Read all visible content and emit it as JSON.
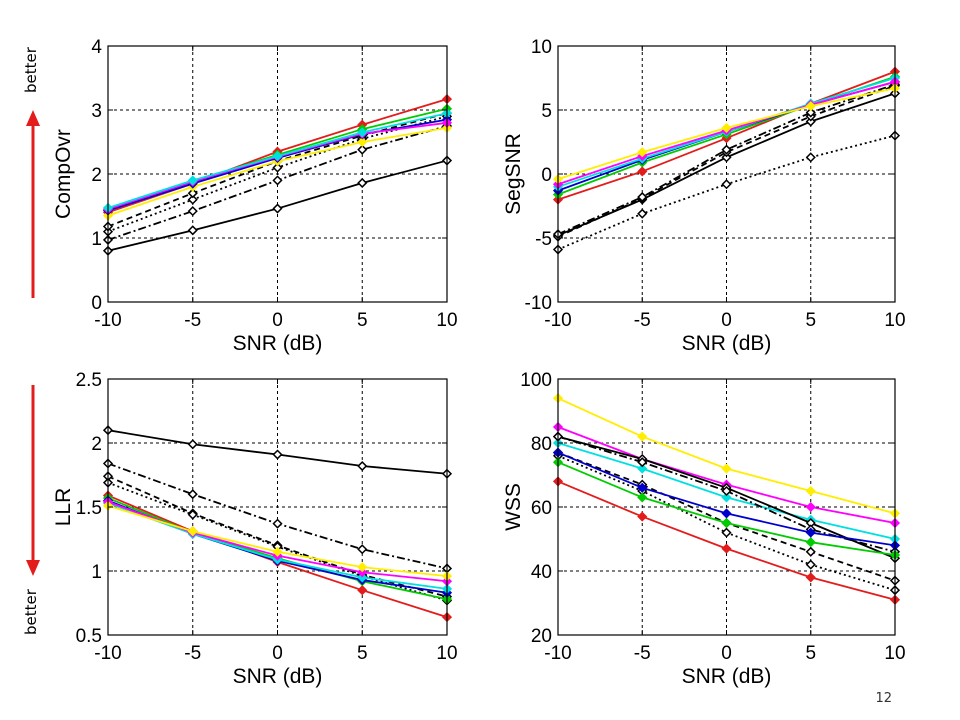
{
  "page": {
    "page_number": "12"
  },
  "annotations": {
    "top_label": "better",
    "bottom_label": "better",
    "arrow_color": "#e31c1c"
  },
  "chart_data": [
    {
      "type": "line",
      "xlabel": "SNR (dB)",
      "ylabel": "CompOvr",
      "x": [
        -10,
        -5,
        0,
        5,
        10
      ],
      "xlim": [
        -10,
        10
      ],
      "ylim": [
        0,
        4
      ],
      "xticks": [
        "-10",
        "-5",
        "0",
        "5",
        "10"
      ],
      "yticks": [
        "0",
        "1",
        "2",
        "3",
        "4"
      ],
      "grid": true,
      "series": [
        {
          "color": "#000000",
          "dash": "solid",
          "values": [
            0.8,
            1.12,
            1.46,
            1.86,
            2.21
          ]
        },
        {
          "color": "#000000",
          "dash": "dashdot",
          "values": [
            0.97,
            1.42,
            1.9,
            2.38,
            2.75
          ]
        },
        {
          "color": "#000000",
          "dash": "dotted",
          "values": [
            1.1,
            1.6,
            2.1,
            2.55,
            2.9
          ]
        },
        {
          "color": "#000000",
          "dash": "dashed",
          "values": [
            1.18,
            1.7,
            2.2,
            2.6,
            2.95
          ]
        },
        {
          "color": "#e31c1c",
          "dash": "solid",
          "values": [
            1.4,
            1.85,
            2.35,
            2.77,
            3.17
          ]
        },
        {
          "color": "#ffee00",
          "dash": "solid",
          "values": [
            1.35,
            1.8,
            2.2,
            2.5,
            2.72
          ]
        },
        {
          "color": "#00cc00",
          "dash": "solid",
          "values": [
            1.45,
            1.88,
            2.3,
            2.7,
            3.02
          ]
        },
        {
          "color": "#0000cc",
          "dash": "solid",
          "values": [
            1.43,
            1.85,
            2.25,
            2.62,
            2.85
          ]
        },
        {
          "color": "#ff00ff",
          "dash": "solid",
          "values": [
            1.45,
            1.88,
            2.27,
            2.63,
            2.8
          ]
        },
        {
          "color": "#00e0e0",
          "dash": "solid",
          "values": [
            1.47,
            1.9,
            2.28,
            2.65,
            2.95
          ]
        }
      ]
    },
    {
      "type": "line",
      "xlabel": "SNR (dB)",
      "ylabel": "SegSNR",
      "x": [
        -10,
        -5,
        0,
        5,
        10
      ],
      "xlim": [
        -10,
        10
      ],
      "ylim": [
        -10,
        10
      ],
      "xticks": [
        "-10",
        "-5",
        "0",
        "5",
        "10"
      ],
      "yticks": [
        "-10",
        "-5",
        "0",
        "5",
        "10"
      ],
      "grid": true,
      "series": [
        {
          "color": "#000000",
          "dash": "dotted",
          "values": [
            -5.9,
            -3.1,
            -0.8,
            1.3,
            3.0
          ]
        },
        {
          "color": "#000000",
          "dash": "solid",
          "values": [
            -4.8,
            -2.0,
            1.3,
            4.1,
            6.3
          ]
        },
        {
          "color": "#000000",
          "dash": "dashed",
          "values": [
            -4.9,
            -1.9,
            1.7,
            4.5,
            6.9
          ]
        },
        {
          "color": "#000000",
          "dash": "dashdot",
          "values": [
            -4.7,
            -1.8,
            1.9,
            4.8,
            7.0
          ]
        },
        {
          "color": "#e31c1c",
          "dash": "solid",
          "values": [
            -2.0,
            0.2,
            2.8,
            5.5,
            8.0
          ]
        },
        {
          "color": "#00cc00",
          "dash": "solid",
          "values": [
            -1.6,
            0.9,
            3.1,
            5.4,
            7.6
          ]
        },
        {
          "color": "#0000cc",
          "dash": "solid",
          "values": [
            -1.3,
            1.1,
            3.3,
            5.4,
            7.2
          ]
        },
        {
          "color": "#00e0e0",
          "dash": "solid",
          "values": [
            -1.0,
            1.2,
            3.3,
            5.5,
            7.5
          ]
        },
        {
          "color": "#ff00ff",
          "dash": "solid",
          "values": [
            -0.8,
            1.4,
            3.4,
            5.4,
            7.2
          ]
        },
        {
          "color": "#ffee00",
          "dash": "solid",
          "values": [
            -0.4,
            1.7,
            3.6,
            5.3,
            6.7
          ]
        }
      ]
    },
    {
      "type": "line",
      "xlabel": "SNR (dB)",
      "ylabel": "LLR",
      "x": [
        -10,
        -5,
        0,
        5,
        10
      ],
      "xlim": [
        -10,
        10
      ],
      "ylim": [
        0.5,
        2.5
      ],
      "xticks": [
        "-10",
        "-5",
        "0",
        "5",
        "10"
      ],
      "yticks": [
        "0.5",
        "1",
        "1.5",
        "2",
        "2.5"
      ],
      "grid": true,
      "series": [
        {
          "color": "#000000",
          "dash": "solid",
          "values": [
            2.1,
            1.99,
            1.91,
            1.82,
            1.76
          ]
        },
        {
          "color": "#000000",
          "dash": "dashdot",
          "values": [
            1.84,
            1.6,
            1.37,
            1.17,
            1.02
          ]
        },
        {
          "color": "#000000",
          "dash": "dashed",
          "values": [
            1.74,
            1.45,
            1.2,
            0.97,
            0.8
          ]
        },
        {
          "color": "#000000",
          "dash": "dotted",
          "values": [
            1.69,
            1.44,
            1.19,
            0.96,
            0.77
          ]
        },
        {
          "color": "#e31c1c",
          "dash": "solid",
          "values": [
            1.59,
            1.31,
            1.07,
            0.85,
            0.64
          ]
        },
        {
          "color": "#00cc00",
          "dash": "solid",
          "values": [
            1.57,
            1.3,
            1.1,
            0.92,
            0.78
          ]
        },
        {
          "color": "#0000cc",
          "dash": "solid",
          "values": [
            1.55,
            1.29,
            1.08,
            0.93,
            0.83
          ]
        },
        {
          "color": "#00e0e0",
          "dash": "solid",
          "values": [
            1.53,
            1.29,
            1.09,
            0.95,
            0.86
          ]
        },
        {
          "color": "#ff00ff",
          "dash": "solid",
          "values": [
            1.54,
            1.3,
            1.12,
            0.99,
            0.92
          ]
        },
        {
          "color": "#ffee00",
          "dash": "solid",
          "values": [
            1.51,
            1.31,
            1.15,
            1.03,
            0.96
          ]
        }
      ]
    },
    {
      "type": "line",
      "xlabel": "SNR (dB)",
      "ylabel": "WSS",
      "x": [
        -10,
        -5,
        0,
        5,
        10
      ],
      "xlim": [
        -10,
        10
      ],
      "ylim": [
        20,
        100
      ],
      "xticks": [
        "-10",
        "-5",
        "0",
        "5",
        "10"
      ],
      "yticks": [
        "20",
        "40",
        "60",
        "80",
        "100"
      ],
      "grid": true,
      "series": [
        {
          "color": "#ffee00",
          "dash": "solid",
          "values": [
            94,
            82,
            72,
            65,
            58
          ]
        },
        {
          "color": "#ff00ff",
          "dash": "solid",
          "values": [
            85,
            75,
            67,
            60,
            55
          ]
        },
        {
          "color": "#00e0e0",
          "dash": "solid",
          "values": [
            80,
            72,
            63,
            56,
            50
          ]
        },
        {
          "color": "#000000",
          "dash": "solid",
          "values": [
            82,
            75,
            66,
            55,
            44
          ]
        },
        {
          "color": "#000000",
          "dash": "dashdot",
          "values": [
            82,
            74,
            65,
            53,
            46
          ]
        },
        {
          "color": "#000000",
          "dash": "dashed",
          "values": [
            77,
            67,
            55,
            46,
            37
          ]
        },
        {
          "color": "#000000",
          "dash": "dotted",
          "values": [
            76,
            65,
            52,
            42,
            34
          ]
        },
        {
          "color": "#0000cc",
          "dash": "solid",
          "values": [
            77,
            66,
            58,
            52,
            48
          ]
        },
        {
          "color": "#00cc00",
          "dash": "solid",
          "values": [
            74,
            63,
            55,
            49,
            45
          ]
        },
        {
          "color": "#e31c1c",
          "dash": "solid",
          "values": [
            68,
            57,
            47,
            38,
            31
          ]
        }
      ]
    }
  ]
}
